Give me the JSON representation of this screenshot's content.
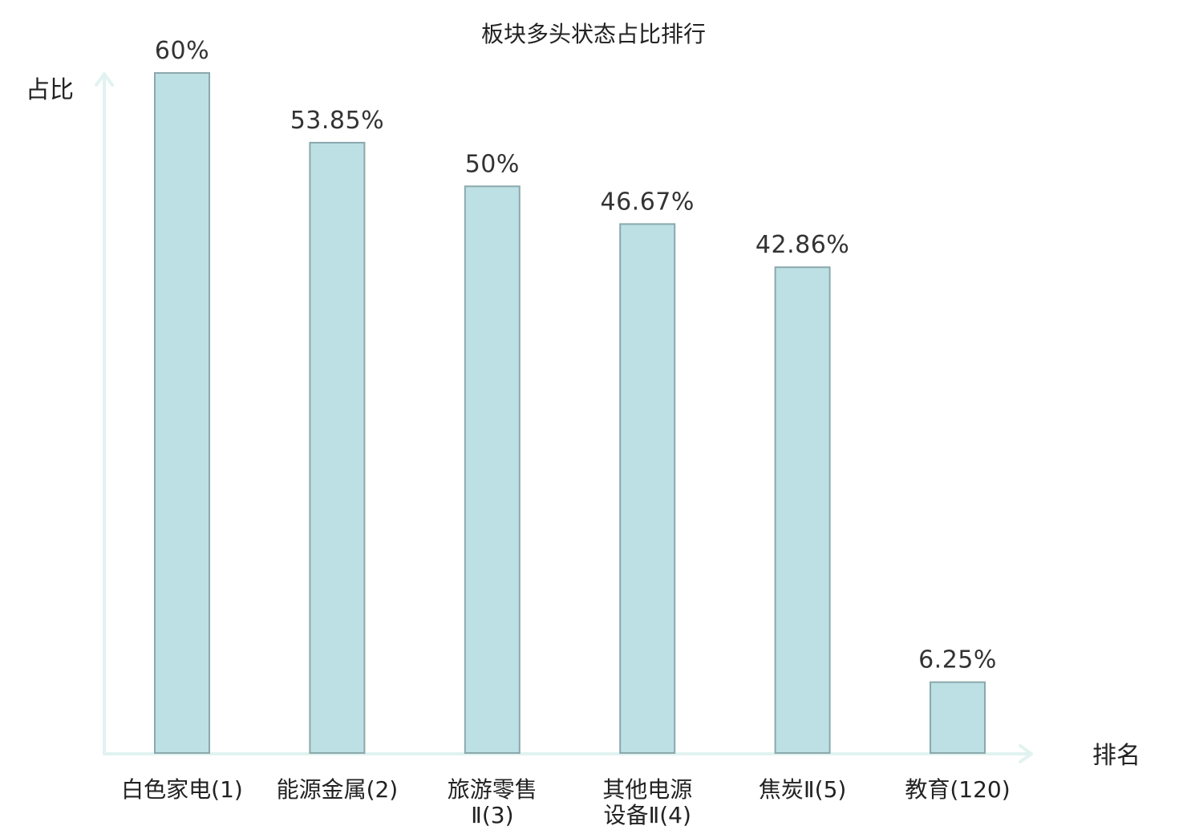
{
  "chart_data": {
    "type": "bar",
    "title": "板块多头状态占比排行",
    "ylabel": "占比",
    "xlabel": "排名",
    "ylim": [
      0,
      60
    ],
    "categories": [
      {
        "lines": [
          "白色家电(1)"
        ],
        "color": "#222222"
      },
      {
        "lines": [
          "能源金属(2)"
        ],
        "color": "#222222"
      },
      {
        "lines": [
          "旅游零售",
          "Ⅱ(3)"
        ],
        "color": "#222222"
      },
      {
        "lines": [
          "其他电源",
          "设备Ⅱ(4)"
        ],
        "color": "#222222"
      },
      {
        "lines": [
          "焦炭Ⅱ(5)"
        ],
        "color": "#222222"
      },
      {
        "lines": [
          "教育(120)"
        ],
        "color": "#d9141b"
      }
    ],
    "values": [
      60,
      53.85,
      50,
      46.67,
      42.86,
      6.25
    ],
    "value_labels": [
      "60%",
      "53.85%",
      "50%",
      "46.67%",
      "42.86%",
      "6.25%"
    ],
    "grid": false,
    "colors": {
      "bar_fill": "#bce0e3",
      "bar_edge": "#8aa8ad",
      "axis": "#e1f3f0",
      "highlight": "#d9141b"
    }
  }
}
